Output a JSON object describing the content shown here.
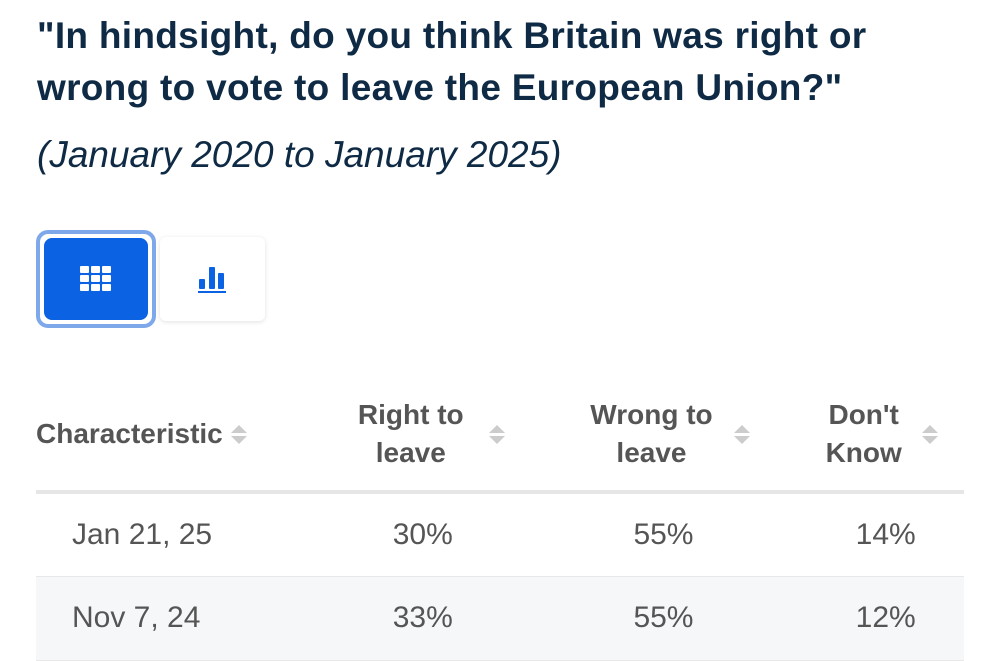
{
  "title": "\"In hindsight, do you think Britain was right or wrong to vote to leave the European Union?\"",
  "subtitle": "(January 2020 to January 2025)",
  "view_toggle": {
    "table_icon": "grid-icon",
    "chart_icon": "bar-chart-icon",
    "selected": "table",
    "accent": "#0b62e3"
  },
  "table": {
    "headers": [
      "Characteristic",
      "Right to leave",
      "Wrong to leave",
      "Don't Know"
    ],
    "rows": [
      [
        "Jan 21, 25",
        "30%",
        "55%",
        "14%"
      ],
      [
        "Nov 7, 24",
        "33%",
        "55%",
        "12%"
      ]
    ]
  }
}
